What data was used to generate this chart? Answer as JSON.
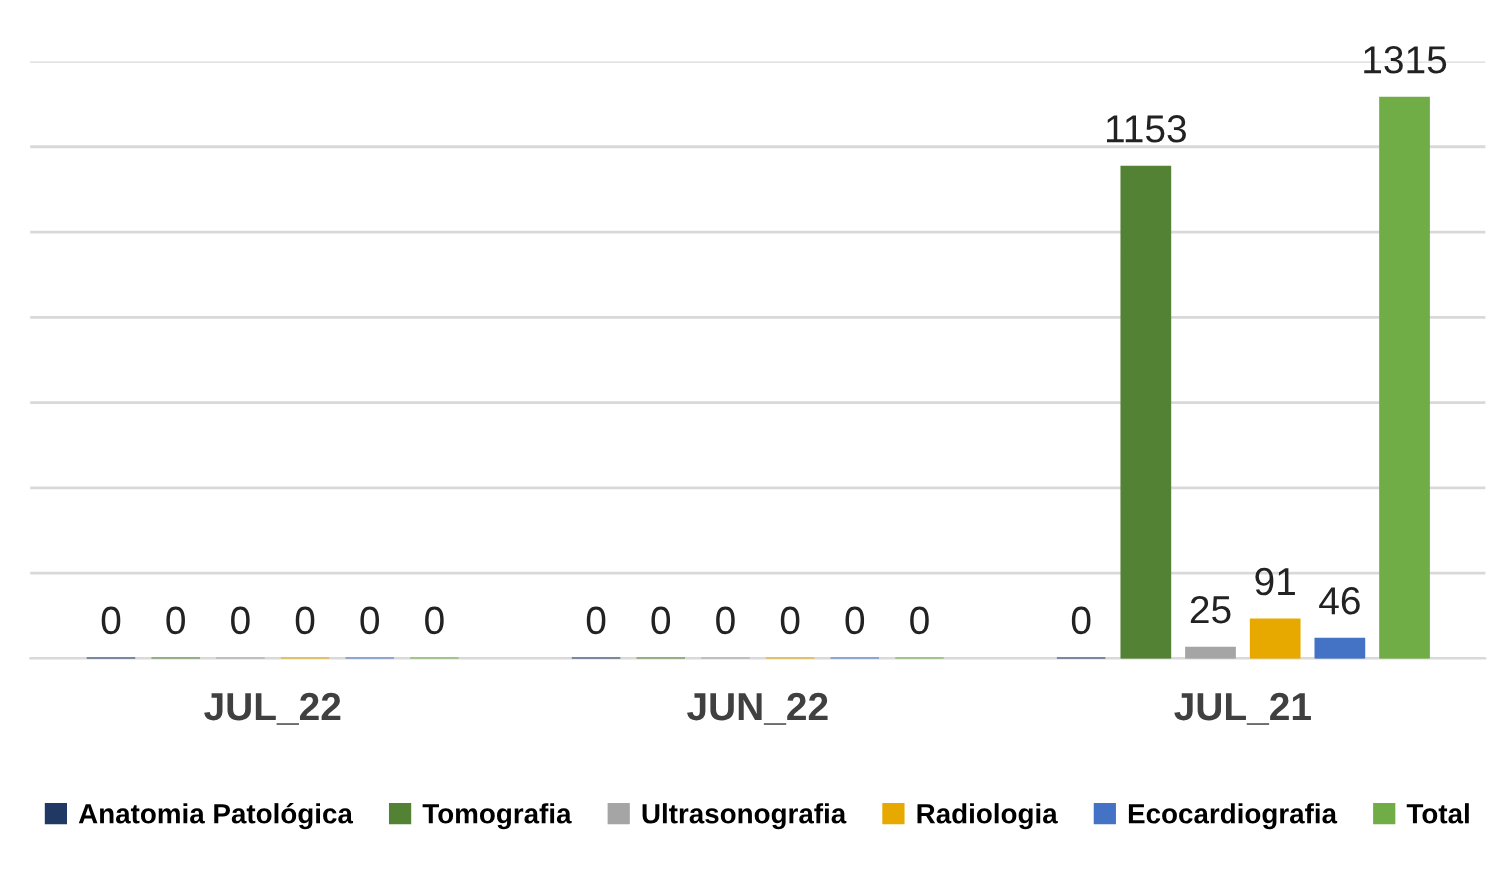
{
  "chart_data": {
    "type": "bar",
    "categories": [
      "JUL_22",
      "JUN_22",
      "JUL_21"
    ],
    "series": [
      {
        "name": "Anatomia Patológica",
        "color": "#1f3864",
        "values": [
          0,
          0,
          0
        ]
      },
      {
        "name": "Tomografia",
        "color": "#548235",
        "values": [
          0,
          0,
          1153
        ]
      },
      {
        "name": "Ultrasonografia",
        "color": "#a5a5a5",
        "values": [
          0,
          0,
          25
        ]
      },
      {
        "name": "Radiologia",
        "color": "#e7a900",
        "values": [
          0,
          0,
          91
        ]
      },
      {
        "name": "Ecocardiografia",
        "color": "#4472c4",
        "values": [
          0,
          0,
          46
        ]
      },
      {
        "name": "Total",
        "color": "#70ad47",
        "values": [
          0,
          0,
          1315
        ]
      }
    ],
    "grid": "y",
    "legend": "bottom",
    "data_labels": true
  }
}
